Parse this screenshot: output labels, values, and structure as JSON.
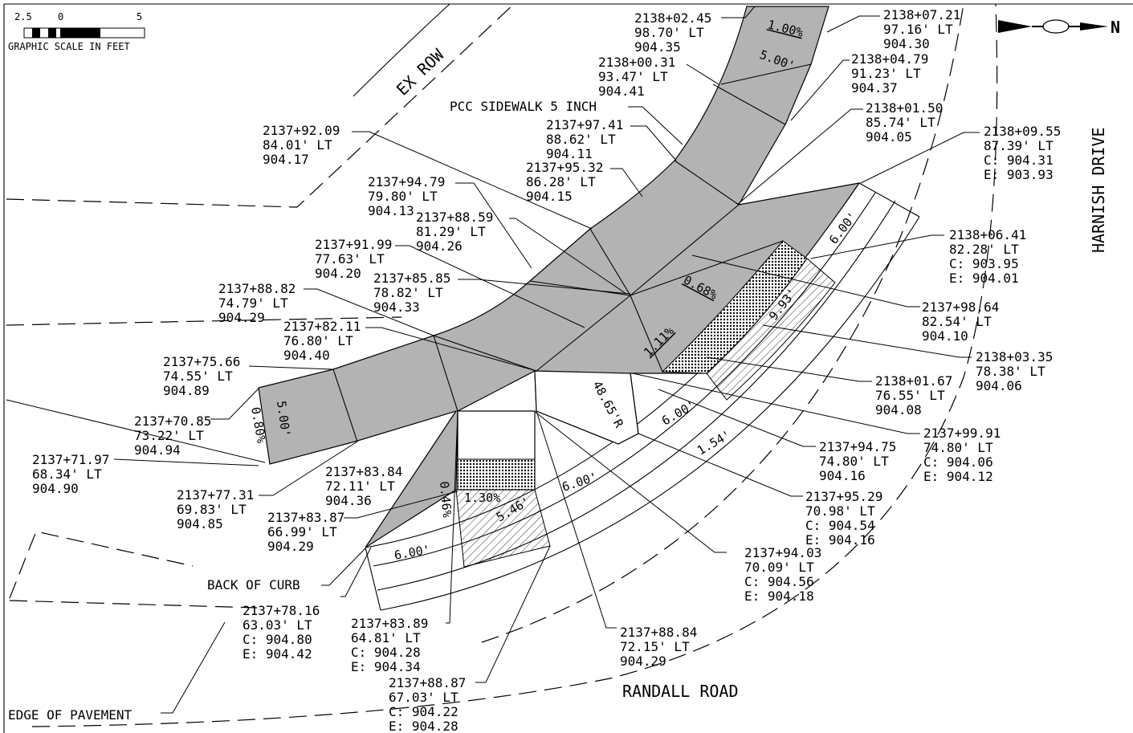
{
  "scale": {
    "ticks": [
      "2.5",
      "0",
      "5"
    ],
    "caption": "GRAPHIC SCALE IN FEET"
  },
  "north": {
    "letter": "N"
  },
  "streets": {
    "harnish": "HARNISH DRIVE",
    "randall": "RANDALL ROAD"
  },
  "features": {
    "ex_row": "EX ROW",
    "sidewalk": "PCC SIDEWALK 5 INCH",
    "back_of_curb": "BACK OF CURB",
    "edge_of_pavement": "EDGE OF PAVEMENT"
  },
  "slopes": {
    "s100": "1.00%",
    "s068": "0.68%",
    "s111": "1.11%",
    "s080": "0.80%",
    "s046": "0.46%",
    "s130": "1.30%"
  },
  "dims": {
    "d500_top": "5.00'",
    "d500_left": "5.00'",
    "d600_a": "6.00'",
    "d600_b": "6.00'",
    "d600_c": "6.00'",
    "d600_d": "6.00'",
    "d993": "9.93'",
    "d154": "1.54'",
    "d546": "5.46'",
    "radius": "48.65'R"
  },
  "callouts": [
    {
      "id": "c01",
      "lines": [
        "2138+02.45",
        "98.70' LT",
        "904.35"
      ]
    },
    {
      "id": "c02",
      "lines": [
        "2138+07.21",
        "97.16' LT",
        "904.30"
      ]
    },
    {
      "id": "c03",
      "lines": [
        "2138+00.31",
        "93.47' LT",
        "904.41"
      ]
    },
    {
      "id": "c04",
      "lines": [
        "2138+04.79",
        "91.23' LT",
        "904.37"
      ]
    },
    {
      "id": "c05",
      "lines": [
        "2138+01.50",
        "85.74' LT",
        "904.05"
      ]
    },
    {
      "id": "c06",
      "lines": [
        "2138+09.55",
        "87.39' LT",
        "C: 904.31",
        "E: 903.93"
      ]
    },
    {
      "id": "c07",
      "lines": [
        "2137+97.41",
        "88.62' LT",
        "904.11"
      ]
    },
    {
      "id": "c08",
      "lines": [
        "2137+92.09",
        "84.01' LT",
        "904.17"
      ]
    },
    {
      "id": "c09",
      "lines": [
        "2137+95.32",
        "86.28' LT",
        "904.15"
      ]
    },
    {
      "id": "c10",
      "lines": [
        "2137+94.79",
        "79.80' LT",
        "904.13"
      ]
    },
    {
      "id": "c11",
      "lines": [
        "2137+88.59",
        "81.29' LT",
        "904.26"
      ]
    },
    {
      "id": "c12",
      "lines": [
        "2138+06.41",
        "82.28' LT",
        "C: 903.95",
        "E: 904.01"
      ]
    },
    {
      "id": "c13",
      "lines": [
        "2137+91.99",
        "77.63' LT",
        "904.20"
      ]
    },
    {
      "id": "c14",
      "lines": [
        "2137+85.85",
        "78.82' LT",
        "904.33"
      ]
    },
    {
      "id": "c15",
      "lines": [
        "2137+88.82",
        "74.79' LT",
        "904.29"
      ]
    },
    {
      "id": "c16",
      "lines": [
        "2137+98.64",
        "82.54' LT",
        "904.10"
      ]
    },
    {
      "id": "c17",
      "lines": [
        "2137+82.11",
        "76.80' LT",
        "904.40"
      ]
    },
    {
      "id": "c18",
      "lines": [
        "2138+03.35",
        "78.38' LT",
        "904.06"
      ]
    },
    {
      "id": "c19",
      "lines": [
        "2137+75.66",
        "74.55' LT",
        "904.89"
      ]
    },
    {
      "id": "c20",
      "lines": [
        "2138+01.67",
        "76.55' LT",
        "904.08"
      ]
    },
    {
      "id": "c21",
      "lines": [
        "2137+70.85",
        "73.22' LT",
        "904.94"
      ]
    },
    {
      "id": "c22",
      "lines": [
        "2137+99.91",
        "74.80' LT",
        "C: 904.06",
        "E: 904.12"
      ]
    },
    {
      "id": "c23",
      "lines": [
        "2137+71.97",
        "68.34' LT",
        "904.90"
      ]
    },
    {
      "id": "c24",
      "lines": [
        "2137+94.75",
        "74.80' LT",
        "904.16"
      ]
    },
    {
      "id": "c25",
      "lines": [
        "2137+83.84",
        "72.11' LT",
        "904.36"
      ]
    },
    {
      "id": "c26",
      "lines": [
        "2137+77.31",
        "69.83' LT",
        "904.85"
      ]
    },
    {
      "id": "c27",
      "lines": [
        "2137+95.29",
        "70.98' LT",
        "C: 904.54",
        "E: 904.16"
      ]
    },
    {
      "id": "c28",
      "lines": [
        "2137+83.87",
        "66.99' LT",
        "904.29"
      ]
    },
    {
      "id": "c29",
      "lines": [
        "2137+94.03",
        "70.09' LT",
        "C: 904.56",
        "E: 904.18"
      ]
    },
    {
      "id": "c30",
      "lines": [
        "2137+78.16",
        "63.03' LT",
        "C: 904.80",
        "E: 904.42"
      ]
    },
    {
      "id": "c31",
      "lines": [
        "2137+83.89",
        "64.81' LT",
        "C: 904.28",
        "E: 904.34"
      ]
    },
    {
      "id": "c32",
      "lines": [
        "2137+88.84",
        "72.15' LT",
        "904.29"
      ]
    },
    {
      "id": "c33",
      "lines": [
        "2137+88.87",
        "67.03' LT",
        "C: 904.22",
        "E: 904.28"
      ]
    }
  ]
}
